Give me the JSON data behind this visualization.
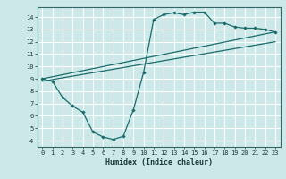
{
  "xlabel": "Humidex (Indice chaleur)",
  "bg_color": "#cce8e8",
  "line_color": "#1a6b6b",
  "grid_color": "#ffffff",
  "xlim": [
    -0.5,
    23.5
  ],
  "ylim": [
    3.5,
    14.8
  ],
  "xticks": [
    0,
    1,
    2,
    3,
    4,
    5,
    6,
    7,
    8,
    9,
    10,
    11,
    12,
    13,
    14,
    15,
    16,
    17,
    18,
    19,
    20,
    21,
    22,
    23
  ],
  "yticks": [
    4,
    5,
    6,
    7,
    8,
    9,
    10,
    11,
    12,
    13,
    14
  ],
  "curve1_x": [
    0,
    1,
    2,
    3,
    4,
    5,
    6,
    7,
    8,
    9,
    10,
    11,
    12,
    13,
    14,
    15,
    16,
    17,
    18,
    19,
    20,
    21,
    22,
    23
  ],
  "curve1_y": [
    9.0,
    8.8,
    7.5,
    6.8,
    6.3,
    4.7,
    4.3,
    4.1,
    4.35,
    6.5,
    9.5,
    13.8,
    14.2,
    14.35,
    14.2,
    14.4,
    14.4,
    13.5,
    13.5,
    13.2,
    13.1,
    13.1,
    13.0,
    12.8
  ],
  "line1_x": [
    0,
    23
  ],
  "line1_y": [
    8.8,
    12.0
  ],
  "line2_x": [
    0,
    23
  ],
  "line2_y": [
    9.0,
    12.8
  ]
}
